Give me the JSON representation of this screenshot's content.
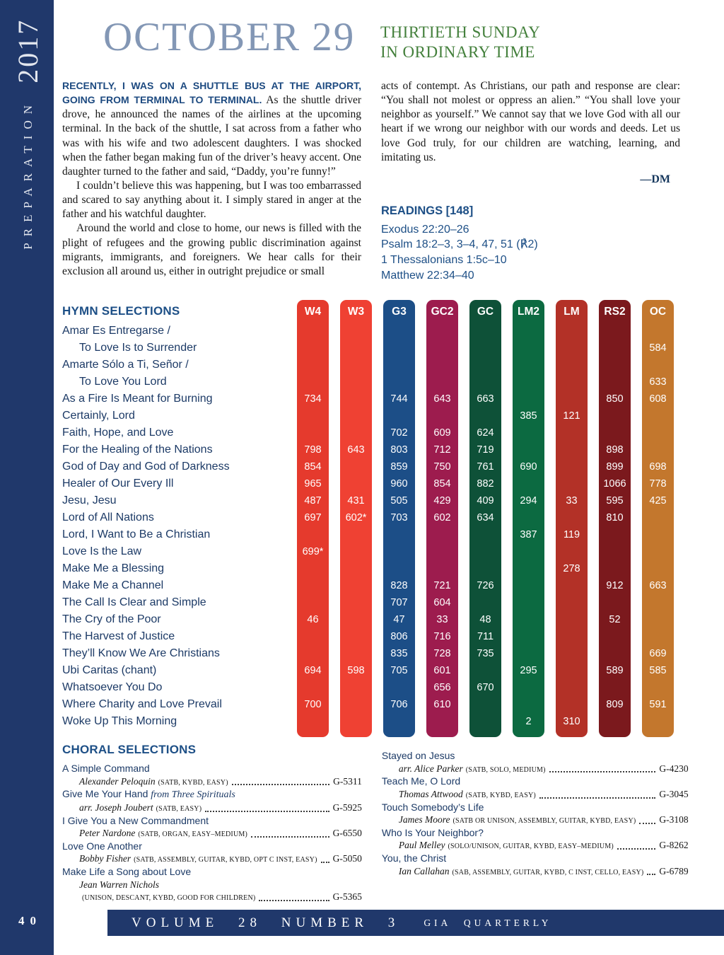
{
  "sidebar": {
    "vertical_text": "PREPARATION",
    "year": "2017",
    "page_number": "40"
  },
  "header": {
    "date_title": "OCTOBER 29",
    "sunday_line1": "THIRTIETH SUNDAY",
    "sunday_line2": "IN ORDINARY TIME"
  },
  "article": {
    "lead_in": "RECENTLY, I WAS ON A SHUTTLE BUS AT THE AIRPORT, GOING FROM TERMINAL TO TERMINAL.",
    "p1_rest": " As the shuttle driver drove, he announced the names of the airlines at the upcoming terminal. In the back of the shuttle, I sat across from a father who was with his wife and two adolescent daughters. I was shocked when the father began making fun of the driver’s heavy accent. One daughter turned to the father and said, “Daddy, you’re funny!”",
    "p2": "I couldn’t believe this was happening, but I was too embarrassed and scared to say anything about it. I simply stared in anger at the father and his watchful daughter.",
    "p3": "Around the world and close to home, our news is filled with the plight of refugees and the growing public discrimination against migrants, immigrants, and foreigners. We hear calls for their exclusion all around us, either in outright prejudice or small",
    "p4": "acts of contempt. As Christians, our path and response are clear: “You shall not molest or oppress an alien.” “You shall love your neighbor as yourself.” We cannot say that we love God with all our heart if we wrong our neighbor with our words and deeds. Let us love God truly, for our children are watching, learning, and imitating us.",
    "byline": "—DM"
  },
  "readings": {
    "heading": "READINGS  [148]",
    "items": [
      "Exodus 22:20–26",
      "Psalm 18:2–3, 3–4, 47, 51  (℟2)",
      "1 Thessalonians 1:5c–10",
      "Matthew 22:34–40"
    ]
  },
  "hymns": {
    "heading": "HYMN SELECTIONS",
    "columns": [
      {
        "key": "W4",
        "label": "W4",
        "color": "#e53a2d"
      },
      {
        "key": "W3",
        "label": "W3",
        "color": "#ef4133"
      },
      {
        "key": "G3",
        "label": "G3",
        "color": "#1c4e87"
      },
      {
        "key": "GC2",
        "label": "GC2",
        "color": "#9d1c4e"
      },
      {
        "key": "GC",
        "label": "GC",
        "color": "#0e5138"
      },
      {
        "key": "LM2",
        "label": "LM2",
        "color": "#0c6a41"
      },
      {
        "key": "LM",
        "label": "LM",
        "color": "#b33127"
      },
      {
        "key": "RS2",
        "label": "RS2",
        "color": "#7b191d"
      },
      {
        "key": "OC",
        "label": "OC",
        "color": "#c3772d"
      }
    ],
    "rows": [
      {
        "title": "Amar Es Entregarse /",
        "indent": false,
        "values": {}
      },
      {
        "title": "To Love Is to Surrender",
        "indent": true,
        "values": {
          "OC": "584"
        }
      },
      {
        "title": "Amarte Sólo a Ti, Señor /",
        "indent": false,
        "values": {}
      },
      {
        "title": "To Love You Lord",
        "indent": true,
        "values": {
          "OC": "633"
        }
      },
      {
        "title": "As a Fire Is Meant for Burning",
        "indent": false,
        "values": {
          "W4": "734",
          "G3": "744",
          "GC2": "643",
          "GC": "663",
          "RS2": "850",
          "OC": "608"
        }
      },
      {
        "title": "Certainly, Lord",
        "indent": false,
        "values": {
          "LM2": "385",
          "LM": "121"
        }
      },
      {
        "title": "Faith, Hope, and Love",
        "indent": false,
        "values": {
          "G3": "702",
          "GC2": "609",
          "GC": "624"
        }
      },
      {
        "title": "For the Healing of the Nations",
        "indent": false,
        "values": {
          "W4": "798",
          "W3": "643",
          "G3": "803",
          "GC2": "712",
          "GC": "719",
          "RS2": "898"
        }
      },
      {
        "title": "God of Day and God of Darkness",
        "indent": false,
        "values": {
          "W4": "854",
          "G3": "859",
          "GC2": "750",
          "GC": "761",
          "LM2": "690",
          "RS2": "899",
          "OC": "698"
        }
      },
      {
        "title": "Healer of Our Every Ill",
        "indent": false,
        "values": {
          "W4": "965",
          "G3": "960",
          "GC2": "854",
          "GC": "882",
          "RS2": "1066",
          "OC": "778"
        }
      },
      {
        "title": "Jesu, Jesu",
        "indent": false,
        "values": {
          "W4": "487",
          "W3": "431",
          "G3": "505",
          "GC2": "429",
          "GC": "409",
          "LM2": "294",
          "LM": "33",
          "RS2": "595",
          "OC": "425"
        }
      },
      {
        "title": "Lord of All Nations",
        "indent": false,
        "values": {
          "W4": "697",
          "W3": "602*",
          "G3": "703",
          "GC2": "602",
          "GC": "634",
          "RS2": "810"
        }
      },
      {
        "title": "Lord, I Want to Be a Christian",
        "indent": false,
        "values": {
          "LM2": "387",
          "LM": "119"
        }
      },
      {
        "title": "Love Is the Law",
        "indent": false,
        "values": {
          "W4": "699*"
        }
      },
      {
        "title": "Make Me a Blessing",
        "indent": false,
        "values": {
          "LM": "278"
        }
      },
      {
        "title": "Make Me a Channel",
        "indent": false,
        "values": {
          "G3": "828",
          "GC2": "721",
          "GC": "726",
          "RS2": "912",
          "OC": "663"
        }
      },
      {
        "title": "The Call Is Clear and Simple",
        "indent": false,
        "values": {
          "G3": "707",
          "GC2": "604"
        }
      },
      {
        "title": "The Cry of the Poor",
        "indent": false,
        "values": {
          "W4": "46",
          "G3": "47",
          "GC2": "33",
          "GC": "48",
          "RS2": "52"
        }
      },
      {
        "title": "The Harvest of Justice",
        "indent": false,
        "values": {
          "G3": "806",
          "GC2": "716",
          "GC": "711"
        }
      },
      {
        "title": "They’ll Know We Are Christians",
        "indent": false,
        "values": {
          "G3": "835",
          "GC2": "728",
          "GC": "735",
          "OC": "669"
        }
      },
      {
        "title": "Ubi Caritas  (chant)",
        "indent": false,
        "values": {
          "W4": "694",
          "W3": "598",
          "G3": "705",
          "GC2": "601",
          "LM2": "295",
          "RS2": "589",
          "OC": "585"
        }
      },
      {
        "title": "Whatsoever You Do",
        "indent": false,
        "values": {
          "GC2": "656",
          "GC": "670"
        }
      },
      {
        "title": "Where Charity and Love Prevail",
        "indent": false,
        "values": {
          "W4": "700",
          "G3": "706",
          "GC2": "610",
          "RS2": "809",
          "OC": "591"
        }
      },
      {
        "title": "Woke Up This Morning",
        "indent": false,
        "values": {
          "LM2": "2",
          "LM": "310"
        }
      }
    ]
  },
  "choral": {
    "heading": "CHORAL SELECTIONS",
    "left": [
      {
        "title": "A Simple Command",
        "name": "Alexander Peloquin",
        "detail": "(SATB, KYBD, EASY)",
        "catalog": "G-5311"
      },
      {
        "title": "Give Me Your Hand ",
        "title_suffix": "from Three Spirituals",
        "name": "arr. Joseph Joubert",
        "detail": "(SATB, EASY)",
        "catalog": "G-5925"
      },
      {
        "title": "I Give You a New Commandment",
        "name": "Peter Nardone",
        "detail": "(SATB, ORGAN, EASY–MEDIUM)",
        "catalog": "G-6550"
      },
      {
        "title": "Love One Another",
        "name": "Bobby Fisher",
        "detail": "(SATB, ASSEMBLY, GUITAR, KYBD, OPT C INST, EASY)",
        "catalog": "G-5050"
      },
      {
        "title": "Make Life a Song about Love",
        "name": "Jean Warren Nichols",
        "detail": "(UNISON, DESCANT, KYBD, GOOD FOR CHILDREN)",
        "catalog": "G-5365",
        "detail_own_line": true
      }
    ],
    "right": [
      {
        "title": "Stayed on Jesus",
        "name": "arr. Alice Parker",
        "detail": "(SATB, SOLO, MEDIUM)",
        "catalog": "G-4230"
      },
      {
        "title": "Teach Me, O Lord",
        "name": "Thomas Attwood",
        "detail": "(SATB, KYBD, EASY)",
        "catalog": "G-3045"
      },
      {
        "title": "Touch Somebody’s Life",
        "name": "James Moore",
        "detail": "(SATB OR UNISON, ASSEMBLY, GUITAR, KYBD, EASY)",
        "catalog": "G-3108"
      },
      {
        "title": "Who Is Your Neighbor?",
        "name": "Paul Melley",
        "detail": "(SOLO/UNISON, GUITAR, KYBD, EASY–MEDIUM)",
        "catalog": "G-8262"
      },
      {
        "title": "You, the Christ",
        "name": "Ian Callahan",
        "detail": "(SAB, ASSEMBLY, GUITAR, KYBD, C INST, CELLO, EASY)",
        "catalog": "G-6789"
      }
    ]
  },
  "footer": {
    "volume": "VOLUME 28 NUMBER 3",
    "magazine": "GIA QUARTERLY"
  }
}
